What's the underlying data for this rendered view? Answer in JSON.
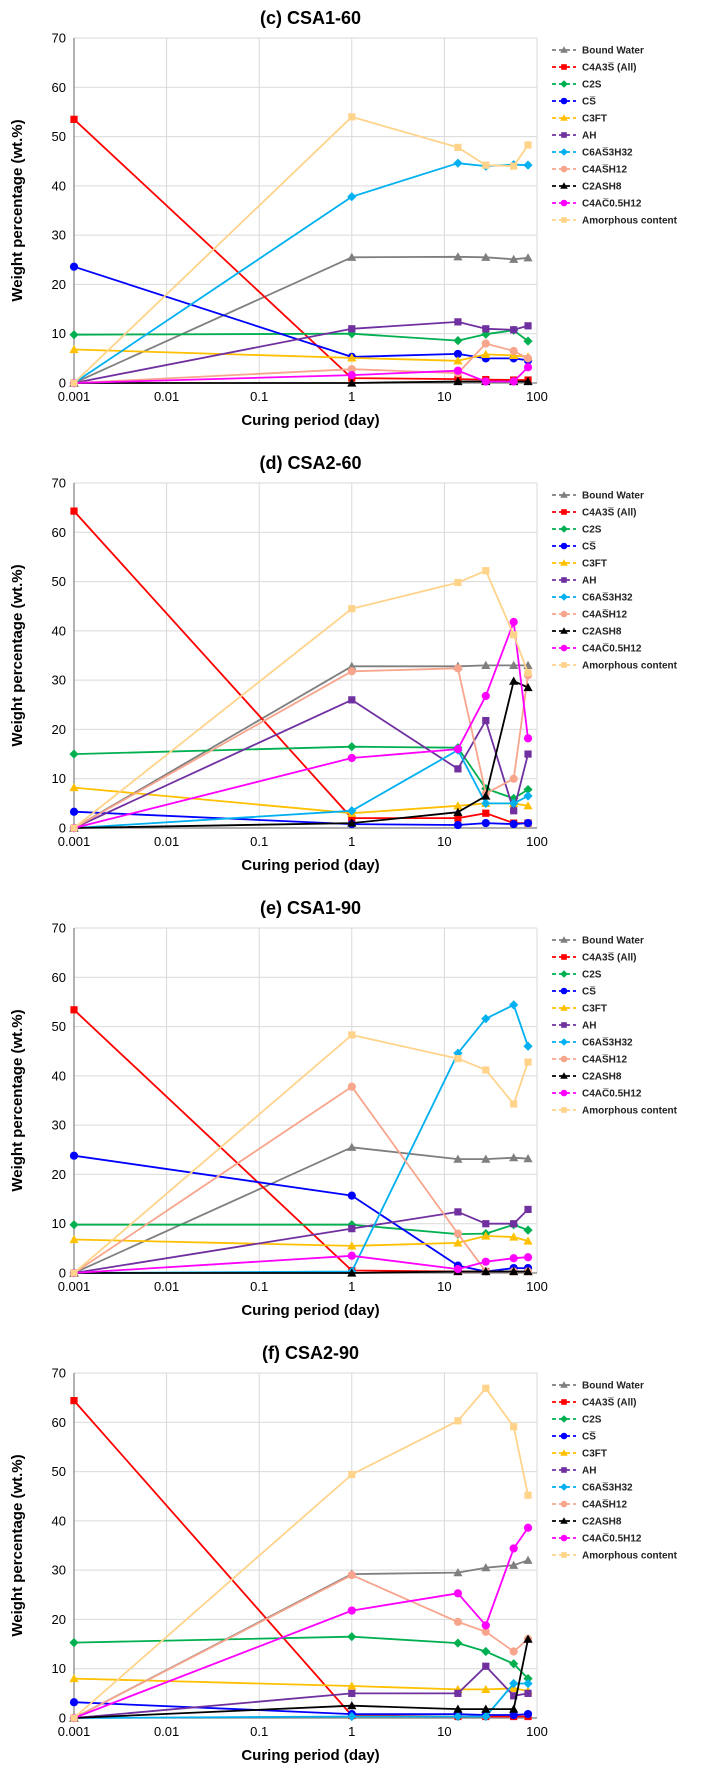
{
  "chart_data": [
    {
      "type": "line",
      "title": "(c) CSA1-60",
      "xlabel": "Curing period (day)",
      "ylabel": "Weight percentage (wt.%)",
      "x_scale": "log",
      "xlim": [
        0.001,
        100
      ],
      "ylim": [
        0,
        70
      ],
      "x_ticks": [
        "0.001",
        "0.01",
        "0.1",
        "1",
        "10",
        "100"
      ],
      "y_ticks": [
        "0",
        "10",
        "20",
        "30",
        "40",
        "50",
        "60",
        "70"
      ],
      "grid": true,
      "legend_position": "right",
      "series": [
        {
          "name": "Bound Water",
          "color": "#7f7f7f",
          "marker": "triangle",
          "x": [
            0.001,
            1,
            14,
            28,
            56,
            80
          ],
          "y": [
            0,
            25.5,
            25.6,
            25.5,
            25.1,
            25.4
          ]
        },
        {
          "name": "C4A3S̅ (All)",
          "color": "#ff0000",
          "marker": "square",
          "x": [
            0.001,
            1,
            14,
            28,
            56,
            80
          ],
          "y": [
            53.5,
            1.0,
            0.8,
            0.7,
            0.6,
            0.6
          ]
        },
        {
          "name": "C2S",
          "color": "#00b050",
          "marker": "diamond",
          "x": [
            0.001,
            1,
            14,
            28,
            56,
            80
          ],
          "y": [
            9.8,
            10.0,
            8.6,
            9.9,
            10.7,
            8.5
          ]
        },
        {
          "name": "CS̅",
          "color": "#0000ff",
          "marker": "circle",
          "x": [
            0.001,
            1,
            14,
            28,
            56,
            80
          ],
          "y": [
            23.6,
            5.3,
            5.9,
            5.0,
            5.0,
            4.6
          ]
        },
        {
          "name": "C3FT",
          "color": "#ffc000",
          "marker": "triangle",
          "x": [
            0.001,
            1,
            14,
            28,
            56,
            80
          ],
          "y": [
            6.8,
            5.1,
            4.5,
            5.8,
            5.6,
            5.3
          ]
        },
        {
          "name": "AH",
          "color": "#7030a0",
          "marker": "square",
          "x": [
            0.001,
            1,
            14,
            28,
            56,
            80
          ],
          "y": [
            0,
            11.0,
            12.4,
            11.0,
            10.8,
            11.6
          ]
        },
        {
          "name": "C6AS̅3H32",
          "color": "#00b0f0",
          "marker": "diamond",
          "x": [
            0.001,
            1,
            14,
            28,
            56,
            80
          ],
          "y": [
            0,
            37.8,
            44.6,
            44.0,
            44.3,
            44.2
          ]
        },
        {
          "name": "C4AS̅H12",
          "color": "#f8a58d",
          "marker": "circle",
          "x": [
            0.001,
            1,
            14,
            28,
            56,
            80
          ],
          "y": [
            0,
            2.8,
            2.0,
            8.0,
            6.5,
            5.0
          ]
        },
        {
          "name": "C2ASH8",
          "color": "#000000",
          "marker": "triangle",
          "x": [
            0.001,
            1,
            14,
            28,
            56,
            80
          ],
          "y": [
            0,
            0,
            0.3,
            0.3,
            0.3,
            0.3
          ]
        },
        {
          "name": "C4AC̅0.5H12",
          "color": "#ff00ff",
          "marker": "circle",
          "x": [
            0.001,
            1,
            14,
            28,
            56,
            80
          ],
          "y": [
            0,
            1.6,
            2.5,
            0.3,
            0.3,
            3.2
          ]
        },
        {
          "name": "Amorphous content",
          "color": "#ffd38a",
          "marker": "square",
          "x": [
            0.001,
            1,
            14,
            28,
            56,
            80
          ],
          "y": [
            0,
            54.0,
            47.8,
            44.2,
            44.0,
            48.3
          ]
        }
      ]
    },
    {
      "type": "line",
      "title": "(d) CSA2-60",
      "xlabel": "Curing period (day)",
      "ylabel": "Weight percentage (wt.%)",
      "x_scale": "log",
      "xlim": [
        0.001,
        100
      ],
      "ylim": [
        0,
        70
      ],
      "x_ticks": [
        "0.001",
        "0.01",
        "0.1",
        "1",
        "10",
        "100"
      ],
      "y_ticks": [
        "0",
        "10",
        "20",
        "30",
        "40",
        "50",
        "60",
        "70"
      ],
      "grid": true,
      "legend_position": "right",
      "series": [
        {
          "name": "Bound Water",
          "color": "#7f7f7f",
          "marker": "triangle",
          "x": [
            0.001,
            1,
            14,
            28,
            56,
            80
          ],
          "y": [
            0,
            32.8,
            32.8,
            33.0,
            33.0,
            33.0
          ]
        },
        {
          "name": "C4A3S̅ (All)",
          "color": "#ff0000",
          "marker": "square",
          "x": [
            0.001,
            1,
            14,
            28,
            56,
            80
          ],
          "y": [
            64.3,
            2.0,
            2.0,
            3.0,
            1.0,
            1.0
          ]
        },
        {
          "name": "C2S",
          "color": "#00b050",
          "marker": "diamond",
          "x": [
            0.001,
            1,
            14,
            28,
            56,
            80
          ],
          "y": [
            15.0,
            16.5,
            16.3,
            8.0,
            6.0,
            7.8
          ]
        },
        {
          "name": "CS̅",
          "color": "#0000ff",
          "marker": "circle",
          "x": [
            0.001,
            1,
            14,
            28,
            56,
            80
          ],
          "y": [
            3.3,
            0.8,
            0.6,
            1.0,
            0.8,
            1.0
          ]
        },
        {
          "name": "C3FT",
          "color": "#ffc000",
          "marker": "triangle",
          "x": [
            0.001,
            1,
            14,
            28,
            56,
            80
          ],
          "y": [
            8.2,
            3.0,
            4.5,
            5.0,
            5.0,
            4.5
          ]
        },
        {
          "name": "AH",
          "color": "#7030a0",
          "marker": "square",
          "x": [
            0.001,
            1,
            14,
            28,
            56,
            80
          ],
          "y": [
            0,
            26.0,
            12.0,
            21.8,
            3.5,
            15.0
          ]
        },
        {
          "name": "C6AS̅3H32",
          "color": "#00b0f0",
          "marker": "diamond",
          "x": [
            0.001,
            1,
            14,
            28,
            56,
            80
          ],
          "y": [
            0,
            3.5,
            15.8,
            5.0,
            5.0,
            6.5
          ]
        },
        {
          "name": "C4AS̅H12",
          "color": "#f8a58d",
          "marker": "circle",
          "x": [
            0.001,
            1,
            14,
            28,
            56,
            80
          ],
          "y": [
            0,
            31.8,
            32.4,
            7.0,
            10.0,
            31.0
          ]
        },
        {
          "name": "C2ASH8",
          "color": "#000000",
          "marker": "triangle",
          "x": [
            0.001,
            1,
            14,
            28,
            56,
            80
          ],
          "y": [
            0,
            1.0,
            3.2,
            6.5,
            29.8,
            28.5
          ]
        },
        {
          "name": "C4AC̅0.5H12",
          "color": "#ff00ff",
          "marker": "circle",
          "x": [
            0.001,
            1,
            14,
            28,
            56,
            80
          ],
          "y": [
            0,
            14.2,
            16.0,
            26.8,
            41.8,
            18.2
          ]
        },
        {
          "name": "Amorphous content",
          "color": "#ffd38a",
          "marker": "square",
          "x": [
            0.001,
            1,
            14,
            28,
            56,
            80
          ],
          "y": [
            0,
            44.5,
            49.8,
            52.2,
            39.2,
            31.5
          ]
        }
      ]
    },
    {
      "type": "line",
      "title": "(e) CSA1-90",
      "xlabel": "Curing period (day)",
      "ylabel": "Weight percentage (wt.%)",
      "x_scale": "log",
      "xlim": [
        0.001,
        100
      ],
      "ylim": [
        0,
        70
      ],
      "x_ticks": [
        "0.001",
        "0.01",
        "0.1",
        "1",
        "10",
        "100"
      ],
      "y_ticks": [
        "0",
        "10",
        "20",
        "30",
        "40",
        "50",
        "60",
        "70"
      ],
      "grid": true,
      "legend_position": "right",
      "series": [
        {
          "name": "Bound Water",
          "color": "#7f7f7f",
          "marker": "triangle",
          "x": [
            0.001,
            1,
            14,
            28,
            56,
            80
          ],
          "y": [
            0,
            25.5,
            23.1,
            23.1,
            23.4,
            23.2
          ]
        },
        {
          "name": "C4A3S̅ (All)",
          "color": "#ff0000",
          "marker": "square",
          "x": [
            0.001,
            1,
            14,
            28,
            56,
            80
          ],
          "y": [
            53.4,
            0.5,
            0.3,
            0.3,
            0.3,
            0.3
          ]
        },
        {
          "name": "C2S",
          "color": "#00b050",
          "marker": "diamond",
          "x": [
            0.001,
            1,
            14,
            28,
            56,
            80
          ],
          "y": [
            9.8,
            9.8,
            7.9,
            8.0,
            9.8,
            8.7
          ]
        },
        {
          "name": "CS̅",
          "color": "#0000ff",
          "marker": "circle",
          "x": [
            0.001,
            1,
            14,
            28,
            56,
            80
          ],
          "y": [
            23.8,
            15.7,
            1.5,
            0.3,
            1.0,
            1.0
          ]
        },
        {
          "name": "C3FT",
          "color": "#ffc000",
          "marker": "triangle",
          "x": [
            0.001,
            1,
            14,
            28,
            56,
            80
          ],
          "y": [
            6.8,
            5.5,
            6.1,
            7.5,
            7.3,
            6.5
          ]
        },
        {
          "name": "AH",
          "color": "#7030a0",
          "marker": "square",
          "x": [
            0.001,
            1,
            14,
            28,
            56,
            80
          ],
          "y": [
            0,
            9.0,
            12.4,
            10.0,
            10.0,
            12.9
          ]
        },
        {
          "name": "C6AS̅3H32",
          "color": "#00b0f0",
          "marker": "diamond",
          "x": [
            0.001,
            1,
            14,
            28,
            56,
            80
          ],
          "y": [
            0,
            0.3,
            44.6,
            51.6,
            54.4,
            46.0
          ]
        },
        {
          "name": "C4AS̅H12",
          "color": "#f8a58d",
          "marker": "circle",
          "x": [
            0.001,
            1,
            14,
            28,
            56,
            80
          ],
          "y": [
            0,
            37.8,
            8.0,
            0.3,
            0.3,
            0.3
          ]
        },
        {
          "name": "C2ASH8",
          "color": "#000000",
          "marker": "triangle",
          "x": [
            0.001,
            1,
            14,
            28,
            56,
            80
          ],
          "y": [
            0,
            0,
            0.3,
            0.3,
            0.3,
            0.3
          ]
        },
        {
          "name": "C4AC̅0.5H12",
          "color": "#ff00ff",
          "marker": "circle",
          "x": [
            0.001,
            1,
            14,
            28,
            56,
            80
          ],
          "y": [
            0,
            3.5,
            0.8,
            2.3,
            3.0,
            3.2
          ]
        },
        {
          "name": "Amorphous content",
          "color": "#ffd38a",
          "marker": "square",
          "x": [
            0.001,
            1,
            14,
            28,
            56,
            80
          ],
          "y": [
            0,
            48.3,
            43.5,
            41.2,
            34.3,
            42.8
          ]
        }
      ]
    },
    {
      "type": "line",
      "title": "(f) CSA2-90",
      "xlabel": "Curing period (day)",
      "ylabel": "Weight percentage (wt.%)",
      "x_scale": "log",
      "xlim": [
        0.001,
        100
      ],
      "ylim": [
        0,
        70
      ],
      "x_ticks": [
        "0.001",
        "0.01",
        "0.1",
        "1",
        "10",
        "100"
      ],
      "y_ticks": [
        "0",
        "10",
        "20",
        "30",
        "40",
        "50",
        "60",
        "70"
      ],
      "grid": true,
      "legend_position": "right",
      "series": [
        {
          "name": "Bound Water",
          "color": "#7f7f7f",
          "marker": "triangle",
          "x": [
            0.001,
            1,
            14,
            28,
            56,
            80
          ],
          "y": [
            0,
            29.2,
            29.5,
            30.5,
            31.0,
            32.0
          ]
        },
        {
          "name": "C4A3S̅ (All)",
          "color": "#ff0000",
          "marker": "square",
          "x": [
            0.001,
            1,
            14,
            28,
            56,
            80
          ],
          "y": [
            64.4,
            0.5,
            0.3,
            0.3,
            0.3,
            0.3
          ]
        },
        {
          "name": "C2S",
          "color": "#00b050",
          "marker": "diamond",
          "x": [
            0.001,
            1,
            14,
            28,
            56,
            80
          ],
          "y": [
            15.3,
            16.5,
            15.2,
            13.5,
            11.0,
            8.0
          ]
        },
        {
          "name": "CS̅",
          "color": "#0000ff",
          "marker": "circle",
          "x": [
            0.001,
            1,
            14,
            28,
            56,
            80
          ],
          "y": [
            3.2,
            0.8,
            0.8,
            0.6,
            0.6,
            0.8
          ]
        },
        {
          "name": "C3FT",
          "color": "#ffc000",
          "marker": "triangle",
          "x": [
            0.001,
            1,
            14,
            28,
            56,
            80
          ],
          "y": [
            8.0,
            6.5,
            5.8,
            5.8,
            6.0,
            5.5
          ]
        },
        {
          "name": "AH",
          "color": "#7030a0",
          "marker": "square",
          "x": [
            0.001,
            1,
            14,
            28,
            56,
            80
          ],
          "y": [
            0,
            5.0,
            5.0,
            10.5,
            4.5,
            5.0
          ]
        },
        {
          "name": "C6AS̅3H32",
          "color": "#00b0f0",
          "marker": "diamond",
          "x": [
            0.001,
            1,
            14,
            28,
            56,
            80
          ],
          "y": [
            0,
            0.3,
            0.3,
            0.3,
            7.0,
            7.0
          ]
        },
        {
          "name": "C4AS̅H12",
          "color": "#f8a58d",
          "marker": "circle",
          "x": [
            0.001,
            1,
            14,
            28,
            56,
            80
          ],
          "y": [
            0,
            29.0,
            19.5,
            17.5,
            13.5,
            16.0
          ]
        },
        {
          "name": "C2ASH8",
          "color": "#000000",
          "marker": "triangle",
          "x": [
            0.001,
            1,
            14,
            28,
            56,
            80
          ],
          "y": [
            0,
            2.5,
            1.8,
            1.8,
            1.8,
            16.0
          ]
        },
        {
          "name": "C4AC̅0.5H12",
          "color": "#ff00ff",
          "marker": "circle",
          "x": [
            0.001,
            1,
            14,
            28,
            56,
            80
          ],
          "y": [
            0,
            21.8,
            25.3,
            18.8,
            34.4,
            38.6
          ]
        },
        {
          "name": "Amorphous content",
          "color": "#ffd38a",
          "marker": "square",
          "x": [
            0.001,
            1,
            14,
            28,
            56,
            80
          ],
          "y": [
            0,
            49.4,
            60.3,
            66.9,
            59.1,
            45.2
          ]
        }
      ]
    }
  ]
}
